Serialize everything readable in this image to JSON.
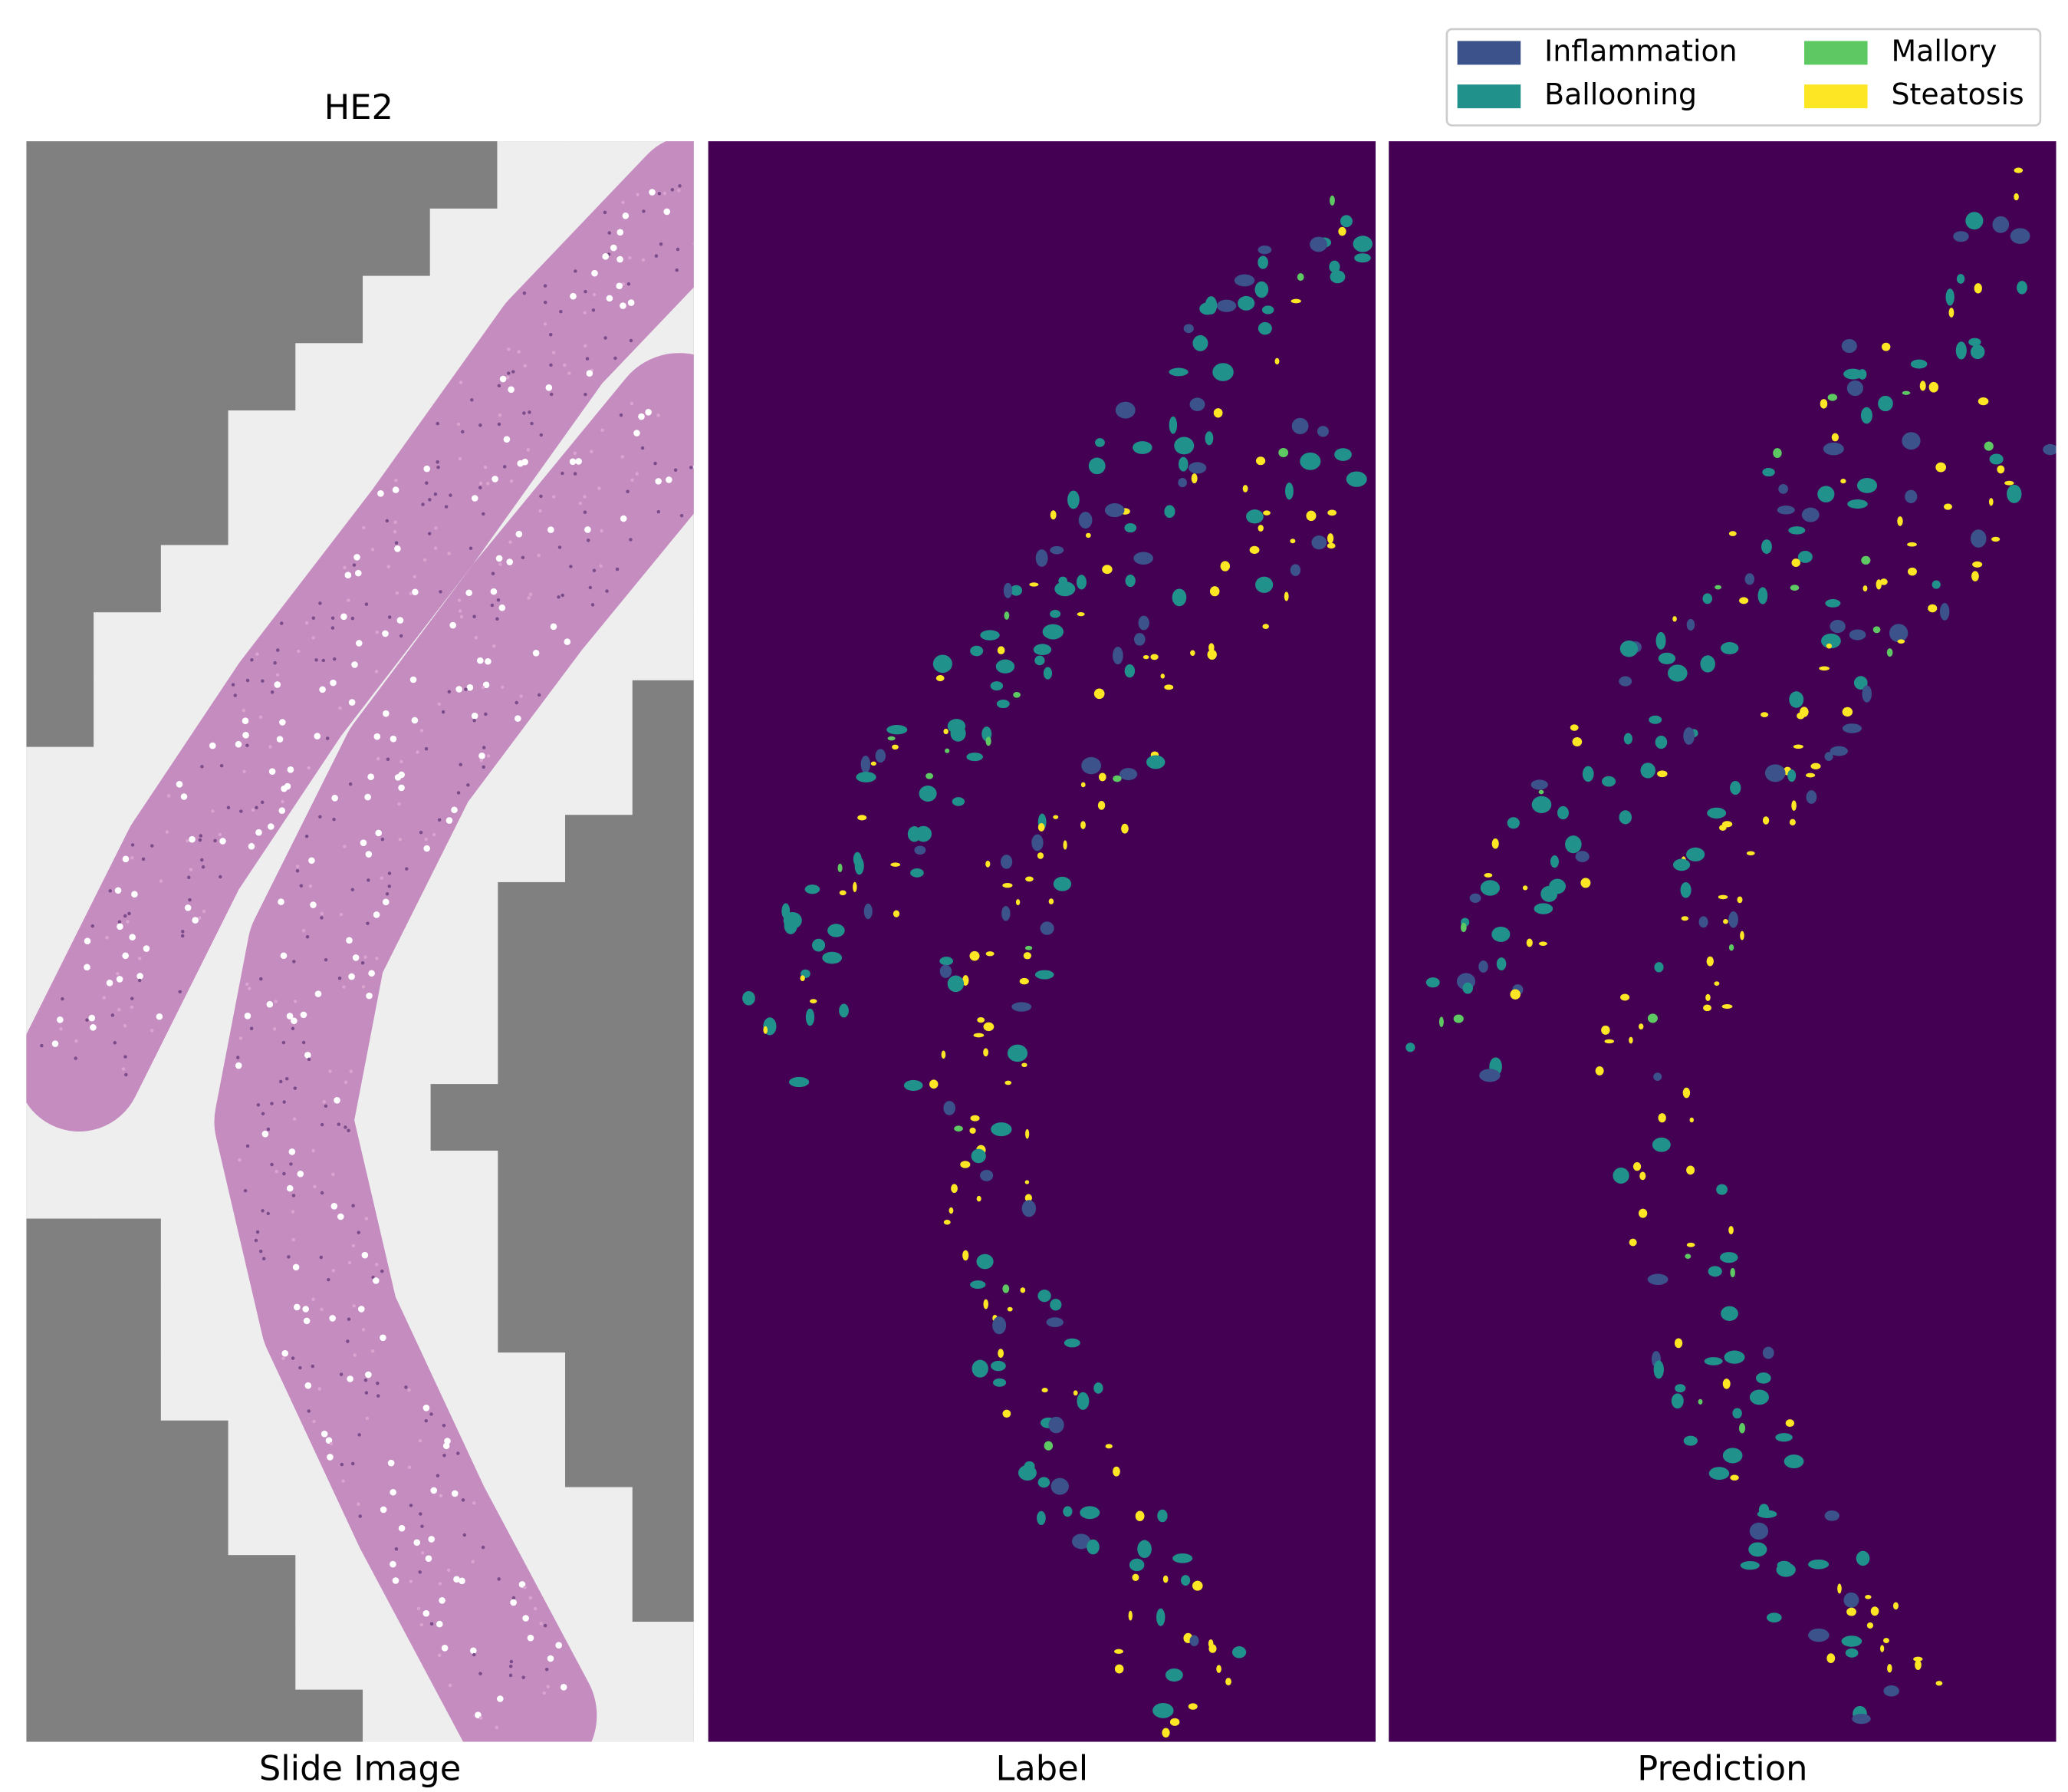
{
  "title": "HE2",
  "panels": [
    {
      "label": "Slide Image"
    },
    {
      "label": "Label"
    },
    {
      "label": "Prediction"
    }
  ],
  "legend": [
    {
      "name": "Inflammation",
      "color": "#3b528b"
    },
    {
      "name": "Mallory",
      "color": "#5ec962"
    },
    {
      "name": "Ballooning",
      "color": "#21918c"
    },
    {
      "name": "Steatosis",
      "color": "#fde725"
    }
  ]
}
